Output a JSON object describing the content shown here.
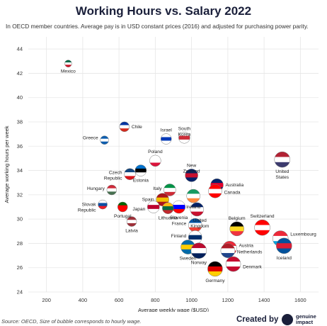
{
  "title": "Working Hours vs. Salary 2022",
  "subtitle": "In OECD member countries. Average pay is in USD constant prices (2016) and adjusted for purchasing power parity.",
  "source": "Source: OECD, Size of bubble corresponds to hourly wage.",
  "credit": "Created by",
  "brand": "genuine impact",
  "colors": {
    "title": "#1a1f3a",
    "grid": "#e6e6e6",
    "text": "#222222"
  },
  "chart_data": {
    "type": "scatter",
    "xlabel": "Average weekly wage ($USD)",
    "ylabel": "Average working hours per week",
    "xlim": [
      100,
      1700
    ],
    "ylim": [
      24,
      45
    ],
    "xticks": [
      200,
      400,
      600,
      800,
      1000,
      1200,
      1400,
      1600
    ],
    "yticks": [
      24,
      26,
      28,
      30,
      32,
      34,
      36,
      38,
      40,
      42,
      44
    ],
    "grid": true,
    "points": [
      {
        "country": "Mexico",
        "x": 320,
        "y": 42.8,
        "size": 5,
        "colors": [
          "#006847",
          "#ffffff",
          "#ce1126"
        ],
        "label": "Mexico"
      },
      {
        "country": "Chile",
        "x": 630,
        "y": 37.6,
        "size": 7,
        "colors": [
          "#0033a0",
          "#ffffff",
          "#d52b1e"
        ],
        "label": "Chile"
      },
      {
        "country": "Greece",
        "x": 520,
        "y": 36.5,
        "size": 6,
        "colors": [
          "#0d5eaf",
          "#ffffff",
          "#0d5eaf"
        ],
        "label": "Greece"
      },
      {
        "country": "Israel",
        "x": 860,
        "y": 36.6,
        "size": 7.5,
        "colors": [
          "#ffffff",
          "#0038b8",
          "#ffffff"
        ],
        "label": "Israel"
      },
      {
        "country": "South Korea",
        "x": 960,
        "y": 36.7,
        "size": 8,
        "colors": [
          "#ffffff",
          "#cd2e3a",
          "#ffffff"
        ],
        "label": "South Korea"
      },
      {
        "country": "Poland",
        "x": 800,
        "y": 34.8,
        "size": 8,
        "colors": [
          "#ffffff",
          "#ffffff",
          "#dc143c"
        ],
        "label": "Poland"
      },
      {
        "country": "Czech Republic",
        "x": 660,
        "y": 33.7,
        "size": 8,
        "colors": [
          "#11457e",
          "#ffffff",
          "#d7141a"
        ],
        "label": "Czech Republic"
      },
      {
        "country": "Estonia",
        "x": 720,
        "y": 34.0,
        "size": 8,
        "colors": [
          "#0072ce",
          "#000000",
          "#ffffff"
        ],
        "label": "Estonia"
      },
      {
        "country": "New Zealand",
        "x": 1000,
        "y": 33.6,
        "size": 9,
        "colors": [
          "#012169",
          "#c8102e",
          "#012169"
        ],
        "label": "New Zealand"
      },
      {
        "country": "Australia",
        "x": 1140,
        "y": 32.8,
        "size": 9,
        "colors": [
          "#012169",
          "#e4002b",
          "#012169"
        ],
        "label": "Australia"
      },
      {
        "country": "United States",
        "x": 1500,
        "y": 34.9,
        "size": 11,
        "colors": [
          "#b22234",
          "#ffffff",
          "#3c3b6e"
        ],
        "label": "United States"
      },
      {
        "country": "Hungary",
        "x": 560,
        "y": 32.4,
        "size": 7,
        "colors": [
          "#ce2939",
          "#ffffff",
          "#477050"
        ],
        "label": "Hungary"
      },
      {
        "country": "Italy",
        "x": 880,
        "y": 32.4,
        "size": 8.5,
        "colors": [
          "#009246",
          "#ffffff",
          "#ce2b37"
        ],
        "label": "Italy"
      },
      {
        "country": "Spain",
        "x": 840,
        "y": 31.6,
        "size": 9,
        "colors": [
          "#aa151b",
          "#f1bf00",
          "#aa151b"
        ],
        "label": "Spain"
      },
      {
        "country": "Slovenia",
        "x": 930,
        "y": 31.0,
        "size": 9,
        "colors": [
          "#ffffff",
          "#0000ff",
          "#ff0000"
        ],
        "label": "Slovenia"
      },
      {
        "country": "Ireland",
        "x": 1010,
        "y": 31.9,
        "size": 9.5,
        "colors": [
          "#169b62",
          "#ffffff",
          "#ff883e"
        ],
        "label": "Ireland"
      },
      {
        "country": "Canada",
        "x": 1130,
        "y": 32.3,
        "size": 9.5,
        "colors": [
          "#ff0000",
          "#ffffff",
          "#ff0000"
        ],
        "label": "Canada"
      },
      {
        "country": "Slovak Republic",
        "x": 510,
        "y": 31.2,
        "size": 6.5,
        "colors": [
          "#ffffff",
          "#0b4ea2",
          "#ee1c25"
        ],
        "label": "Slovak Republic"
      },
      {
        "country": "Portugal",
        "x": 620,
        "y": 31.0,
        "size": 7,
        "colors": [
          "#006600",
          "#ff0000",
          "#ff0000"
        ],
        "label": "Portugal"
      },
      {
        "country": "Japan",
        "x": 790,
        "y": 31.0,
        "size": 8.5,
        "colors": [
          "#ffffff",
          "#bc002d",
          "#ffffff"
        ],
        "label": "Japan"
      },
      {
        "country": "Lithuania",
        "x": 870,
        "y": 30.9,
        "size": 8,
        "colors": [
          "#fdb913",
          "#006a44",
          "#c1272d"
        ],
        "label": "Lithuania"
      },
      {
        "country": "United Kingdom",
        "x": 1030,
        "y": 30.8,
        "size": 9.5,
        "colors": [
          "#012169",
          "#ffffff",
          "#c8102e"
        ],
        "label": "United Kingdom"
      },
      {
        "country": "Latvia",
        "x": 670,
        "y": 29.8,
        "size": 7,
        "colors": [
          "#9e3039",
          "#ffffff",
          "#9e3039"
        ],
        "label": "Latvia"
      },
      {
        "country": "France",
        "x": 1020,
        "y": 29.5,
        "size": 9.5,
        "colors": [
          "#0055a4",
          "#ffffff",
          "#ef4135"
        ],
        "label": "France"
      },
      {
        "country": "Belgium",
        "x": 1250,
        "y": 29.2,
        "size": 10,
        "colors": [
          "#000000",
          "#fdda24",
          "#ef3340"
        ],
        "label": "Belgium"
      },
      {
        "country": "Switzerland",
        "x": 1390,
        "y": 29.3,
        "size": 11,
        "colors": [
          "#ff0000",
          "#ffffff",
          "#ff0000"
        ],
        "label": "Switzerland"
      },
      {
        "country": "Luxembourg",
        "x": 1490,
        "y": 28.4,
        "size": 11,
        "colors": [
          "#ed2939",
          "#ffffff",
          "#00a1de"
        ],
        "label": "Luxembourg"
      },
      {
        "country": "Finland",
        "x": 1020,
        "y": 28.5,
        "size": 9.5,
        "colors": [
          "#ffffff",
          "#002f6c",
          "#ffffff"
        ],
        "label": "Finland"
      },
      {
        "country": "Sweden",
        "x": 980,
        "y": 27.7,
        "size": 10,
        "colors": [
          "#006aa7",
          "#fecc00",
          "#006aa7"
        ],
        "label": "Sweden"
      },
      {
        "country": "Norway",
        "x": 1040,
        "y": 27.4,
        "size": 11,
        "colors": [
          "#ba0c2f",
          "#ffffff",
          "#00205b"
        ],
        "label": "Norway"
      },
      {
        "country": "Austria",
        "x": 1210,
        "y": 27.6,
        "size": 10,
        "colors": [
          "#ed2939",
          "#ffffff",
          "#ed2939"
        ],
        "label": "Austria"
      },
      {
        "country": "Netherlands",
        "x": 1200,
        "y": 27.4,
        "size": 10,
        "colors": [
          "#ae1c28",
          "#ffffff",
          "#21468b"
        ],
        "label": "Netherlands"
      },
      {
        "country": "Iceland",
        "x": 1510,
        "y": 27.8,
        "size": 11,
        "colors": [
          "#02529c",
          "#dc1e35",
          "#02529c"
        ],
        "label": "Iceland"
      },
      {
        "country": "Denmark",
        "x": 1230,
        "y": 26.3,
        "size": 10.5,
        "colors": [
          "#c60c30",
          "#ffffff",
          "#c60c30"
        ],
        "label": "Denmark"
      },
      {
        "country": "Germany",
        "x": 1130,
        "y": 25.9,
        "size": 10.5,
        "colors": [
          "#000000",
          "#dd0000",
          "#ffce00"
        ],
        "label": "Germany"
      }
    ]
  }
}
